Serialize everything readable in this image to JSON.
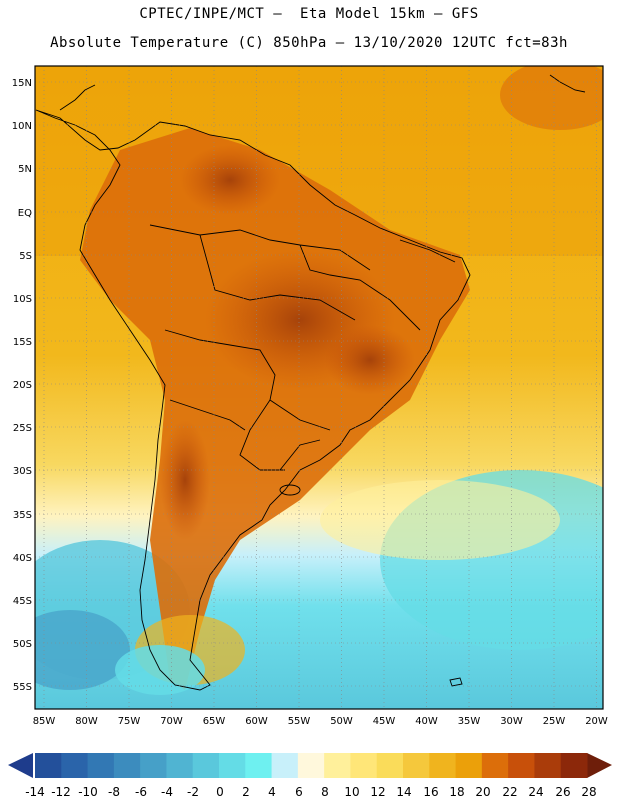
{
  "header": {
    "line1": "CPTEC/INPE/MCT –  Eta Model 15km – GFS",
    "line2": "Absolute Temperature (C) 850hPa – 13/10/2020 12UTC fct=83h"
  },
  "map": {
    "lat_labels": [
      "15N",
      "10N",
      "5N",
      "EQ",
      "5S",
      "10S",
      "15S",
      "20S",
      "25S",
      "30S",
      "35S",
      "40S",
      "45S",
      "50S",
      "55S"
    ],
    "lon_labels": [
      "85W",
      "80W",
      "75W",
      "70W",
      "65W",
      "60W",
      "55W",
      "50W",
      "45W",
      "40W",
      "35W",
      "30W",
      "25W",
      "20W"
    ]
  },
  "colorbar": {
    "labels": [
      "-14",
      "-12",
      "-10",
      "-8",
      "-6",
      "-4",
      "-2",
      "0",
      "2",
      "4",
      "6",
      "8",
      "10",
      "12",
      "14",
      "16",
      "18",
      "20",
      "22",
      "24",
      "26",
      "28"
    ],
    "colors": [
      "#1e3c8c",
      "#23509b",
      "#2a64aa",
      "#3278b4",
      "#3c8cbe",
      "#46a0c8",
      "#50b4d2",
      "#5ac8dc",
      "#64dce6",
      "#6ef0f0",
      "#c8f0fa",
      "#fff8dc",
      "#fff09b",
      "#ffe678",
      "#fadc5a",
      "#f5c83c",
      "#f0b41e",
      "#eba00a",
      "#dc6e0a",
      "#c8500a",
      "#aa3c0a",
      "#8c280a",
      "#6e1e0a"
    ]
  }
}
